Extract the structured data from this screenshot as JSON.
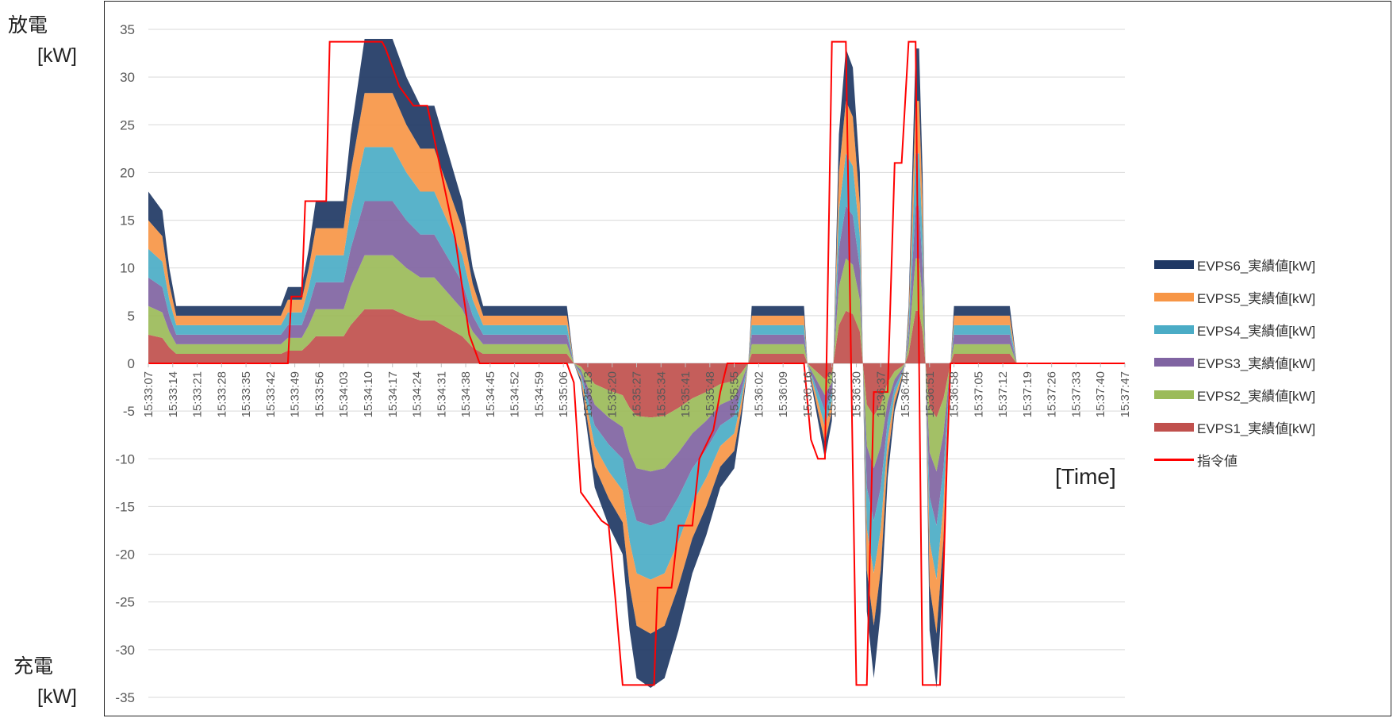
{
  "chart_data": {
    "type": "area",
    "stacked": true,
    "ylim": [
      -35,
      35
    ],
    "yticks": [
      35,
      30,
      25,
      20,
      15,
      10,
      5,
      0,
      -5,
      -10,
      -15,
      -20,
      -25,
      -30,
      -35
    ],
    "y_top_label_line1": "放電",
    "y_top_label_line2": "[kW]",
    "y_bottom_label_line1": "充電",
    "y_bottom_label_line2": "[kW]",
    "xlabel": "[Time]",
    "grid": "horizontal",
    "legend_position": "right",
    "x_ticks": [
      "15:33:07",
      "15:33:14",
      "15:33:21",
      "15:33:28",
      "15:33:35",
      "15:33:42",
      "15:33:49",
      "15:33:56",
      "15:34:03",
      "15:34:10",
      "15:34:17",
      "15:34:24",
      "15:34:31",
      "15:34:38",
      "15:34:45",
      "15:34:52",
      "15:34:59",
      "15:35:06",
      "15:35:13",
      "15:35:20",
      "15:35:27",
      "15:35:34",
      "15:35:41",
      "15:35:48",
      "15:35:55",
      "15:36:02",
      "15:36:09",
      "15:36:16",
      "15:36:23",
      "15:36:30",
      "15:36:37",
      "15:36:44",
      "15:36:51",
      "15:36:58",
      "15:37:05",
      "15:37:12",
      "15:37:19",
      "15:37:26",
      "15:37:33",
      "15:37:40",
      "15:37:47"
    ],
    "x_seconds_span": [
      0,
      280
    ],
    "series": [
      {
        "name": "EVPS1_実績値[kW]",
        "color": "#c0504d"
      },
      {
        "name": "EVPS2_実績値[kW]",
        "color": "#9bbb59"
      },
      {
        "name": "EVPS3_実績値[kW]",
        "color": "#8064a2"
      },
      {
        "name": "EVPS4_実績値[kW]",
        "color": "#4bacc6"
      },
      {
        "name": "EVPS5_実績値[kW]",
        "color": "#f79646"
      },
      {
        "name": "EVPS6_実績値[kW]",
        "color": "#1f3864"
      }
    ],
    "command_series": {
      "name": "指令値",
      "color": "#ff0000"
    },
    "total_profile": [
      [
        0,
        18
      ],
      [
        4,
        16
      ],
      [
        6,
        10
      ],
      [
        8,
        6
      ],
      [
        38,
        6
      ],
      [
        40,
        8
      ],
      [
        44,
        8
      ],
      [
        46,
        12
      ],
      [
        48,
        17
      ],
      [
        56,
        17
      ],
      [
        58,
        24
      ],
      [
        62,
        34
      ],
      [
        70,
        34
      ],
      [
        74,
        30
      ],
      [
        78,
        27
      ],
      [
        82,
        27
      ],
      [
        86,
        22
      ],
      [
        90,
        17
      ],
      [
        93,
        10
      ],
      [
        96,
        6
      ],
      [
        120,
        6
      ],
      [
        121,
        3
      ],
      [
        122,
        0
      ],
      [
        124,
        -2
      ],
      [
        128,
        -13
      ],
      [
        132,
        -17
      ],
      [
        136,
        -20
      ],
      [
        138,
        -28
      ],
      [
        140,
        -33
      ],
      [
        144,
        -34
      ],
      [
        148,
        -33
      ],
      [
        152,
        -28
      ],
      [
        156,
        -22
      ],
      [
        160,
        -18
      ],
      [
        164,
        -13
      ],
      [
        168,
        -11
      ],
      [
        170,
        -6
      ],
      [
        172,
        0
      ],
      [
        173,
        6
      ],
      [
        188,
        6
      ],
      [
        189,
        0
      ],
      [
        192,
        -6
      ],
      [
        194,
        -10
      ],
      [
        196,
        -6
      ],
      [
        198,
        24
      ],
      [
        200,
        33
      ],
      [
        202,
        31
      ],
      [
        204,
        20
      ],
      [
        206,
        -26
      ],
      [
        208,
        -33
      ],
      [
        210,
        -26
      ],
      [
        212,
        -12
      ],
      [
        214,
        -5
      ],
      [
        216,
        -2
      ],
      [
        217,
        0
      ],
      [
        218,
        6
      ],
      [
        220,
        33
      ],
      [
        221,
        33
      ],
      [
        222,
        20
      ],
      [
        224,
        -28
      ],
      [
        226,
        -34
      ],
      [
        228,
        -22
      ],
      [
        230,
        0
      ],
      [
        231,
        6
      ],
      [
        247,
        6
      ],
      [
        249,
        0
      ],
      [
        280,
        0
      ]
    ],
    "command_profile": [
      [
        0,
        0
      ],
      [
        40,
        0
      ],
      [
        41,
        7
      ],
      [
        44,
        7
      ],
      [
        45,
        17
      ],
      [
        51,
        17
      ],
      [
        52,
        33.7
      ],
      [
        67,
        33.7
      ],
      [
        68,
        33
      ],
      [
        72,
        29
      ],
      [
        76,
        27
      ],
      [
        80,
        27
      ],
      [
        84,
        20
      ],
      [
        88,
        13
      ],
      [
        92,
        3
      ],
      [
        95,
        0
      ],
      [
        120,
        0
      ],
      [
        122,
        -2
      ],
      [
        124,
        -13.5
      ],
      [
        130,
        -16.5
      ],
      [
        132,
        -17
      ],
      [
        134,
        -25
      ],
      [
        136,
        -33.7
      ],
      [
        145,
        -33.7
      ],
      [
        146,
        -23.5
      ],
      [
        150,
        -23.5
      ],
      [
        152,
        -17
      ],
      [
        156,
        -17
      ],
      [
        158,
        -10
      ],
      [
        162,
        -7
      ],
      [
        164,
        -3
      ],
      [
        166,
        0
      ],
      [
        188,
        0
      ],
      [
        190,
        -8
      ],
      [
        192,
        -10
      ],
      [
        194,
        -10
      ],
      [
        196,
        33.7
      ],
      [
        200,
        33.7
      ],
      [
        203,
        -33.7
      ],
      [
        206,
        -33.7
      ],
      [
        208,
        -3
      ],
      [
        212,
        -3
      ],
      [
        214,
        21
      ],
      [
        216,
        21
      ],
      [
        218,
        33.7
      ],
      [
        220,
        33.7
      ],
      [
        222,
        -33.7
      ],
      [
        227,
        -33.7
      ],
      [
        229,
        -10
      ],
      [
        230,
        0
      ],
      [
        280,
        0
      ]
    ],
    "legend_order": [
      "EVPS6_実績値[kW]",
      "EVPS5_実績値[kW]",
      "EVPS4_実績値[kW]",
      "EVPS3_実績値[kW]",
      "EVPS2_実績値[kW]",
      "EVPS1_実績値[kW]",
      "指令値"
    ]
  }
}
